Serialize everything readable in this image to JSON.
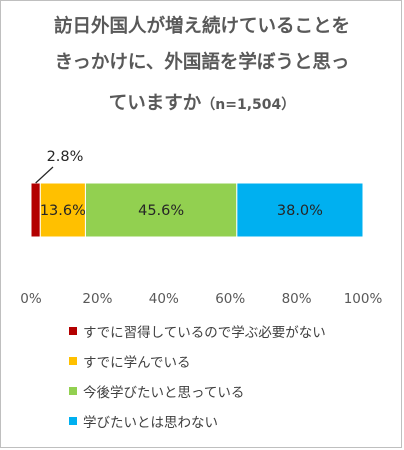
{
  "title_lines": [
    "訪日外国人が増え続けていることを",
    "きっかけに、外国語を学ぼうと思っ",
    "ていますか"
  ],
  "sample_size": "（n=1,504）",
  "chart_data": {
    "type": "bar",
    "orientation": "horizontal",
    "stacked": true,
    "series": [
      {
        "name": "すでに習得しているので学ぶ必要がない",
        "value": 2.8,
        "label": "2.8%",
        "color": "#b30000"
      },
      {
        "name": "すでに学んでいる",
        "value": 13.6,
        "label": "13.6%",
        "color": "#ffc000"
      },
      {
        "name": "今後学びたいと思っている",
        "value": 45.6,
        "label": "45.6%",
        "color": "#92d050"
      },
      {
        "name": "学びたいとは思わない",
        "value": 38.0,
        "label": "38.0%",
        "color": "#00b0f0"
      }
    ],
    "xlim": [
      0,
      100
    ],
    "ticks": [
      "0%",
      "20%",
      "40%",
      "60%",
      "80%",
      "100%"
    ],
    "legend_position": "bottom"
  }
}
